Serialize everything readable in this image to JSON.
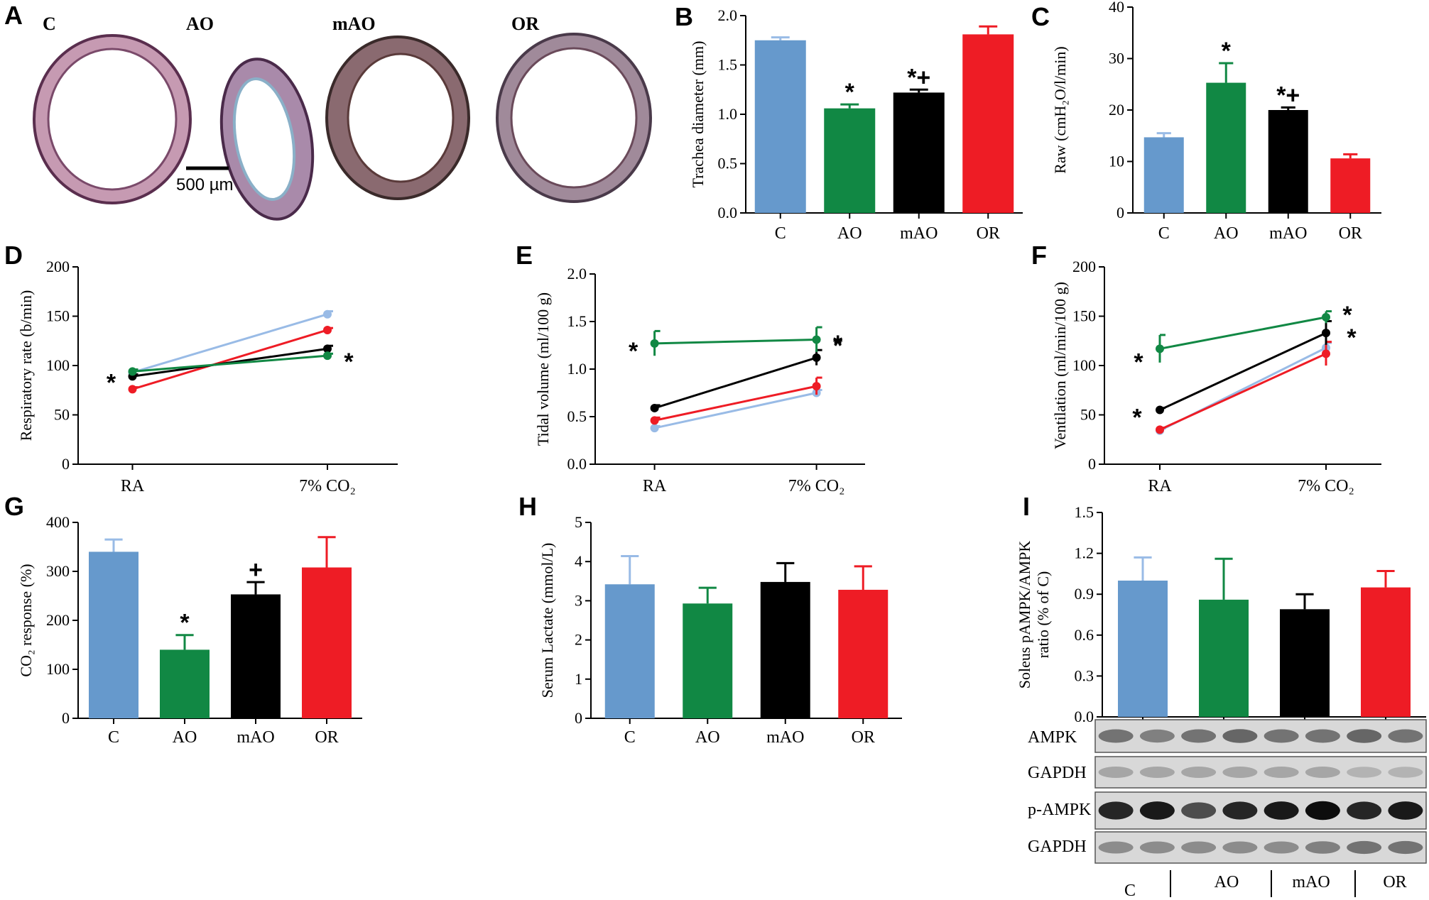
{
  "colors": {
    "C": "#6699cc",
    "AO": "#118844",
    "mAO": "#000000",
    "OR": "#ee1c25",
    "C_light": "#99bbe6"
  },
  "histology": {
    "letter": "A",
    "labels": [
      "C",
      "AO",
      "mAO",
      "OR"
    ],
    "scale_bar": "500 µm"
  },
  "chart_data": [
    {
      "id": "B",
      "type": "bar",
      "ylabel": "Trachea diameter (mm)",
      "categories": [
        "C",
        "AO",
        "mAO",
        "OR"
      ],
      "values": [
        1.75,
        1.06,
        1.22,
        1.81
      ],
      "errors": [
        0.03,
        0.04,
        0.03,
        0.08
      ],
      "ylim": [
        0,
        2.0
      ],
      "ticks": [
        "0.0",
        "0.5",
        "1.0",
        "1.5",
        "2.0"
      ],
      "tick_values": [
        0,
        0.5,
        1.0,
        1.5,
        2.0
      ],
      "markers": [
        "",
        "*",
        "*+",
        ""
      ]
    },
    {
      "id": "C",
      "type": "bar",
      "ylabel": "Raw (cmH₂O/l/min)",
      "categories": [
        "C",
        "AO",
        "mAO",
        "OR"
      ],
      "values": [
        14.7,
        25.3,
        20.0,
        10.6
      ],
      "errors": [
        0.8,
        3.8,
        0.5,
        0.8
      ],
      "ylim": [
        0,
        40
      ],
      "ticks": [
        "0",
        "10",
        "20",
        "30",
        "40"
      ],
      "tick_values": [
        0,
        10,
        20,
        30,
        40
      ],
      "markers": [
        "",
        "*",
        "*+",
        ""
      ]
    },
    {
      "id": "D",
      "type": "line",
      "ylabel": "Respiratory rate (b/min)",
      "x": [
        "RA",
        "7% CO₂"
      ],
      "ylim": [
        0,
        200
      ],
      "ticks": [
        "0",
        "50",
        "100",
        "150",
        "200"
      ],
      "tick_values": [
        0,
        50,
        100,
        150,
        200
      ],
      "series": [
        {
          "name": "C",
          "values": [
            93,
            152
          ],
          "errors": [
            2,
            3
          ]
        },
        {
          "name": "AO",
          "values": [
            94,
            110
          ],
          "errors": [
            2,
            2
          ]
        },
        {
          "name": "mAO",
          "values": [
            89,
            117
          ],
          "errors": [
            2,
            3
          ]
        },
        {
          "name": "OR",
          "values": [
            76,
            136
          ],
          "errors": [
            2,
            2
          ]
        }
      ],
      "annotations": [
        "*",
        "*"
      ]
    },
    {
      "id": "E",
      "type": "line",
      "ylabel": "Tidal volume (ml/100 g)",
      "x": [
        "RA",
        "7% CO₂"
      ],
      "ylim": [
        0,
        2.0
      ],
      "ticks": [
        "0.0",
        "0.5",
        "1.0",
        "1.5",
        "2.0"
      ],
      "tick_values": [
        0,
        0.5,
        1.0,
        1.5,
        2.0
      ],
      "series": [
        {
          "name": "C",
          "values": [
            0.38,
            0.75
          ],
          "errors": [
            0.02,
            0.03
          ]
        },
        {
          "name": "AO",
          "values": [
            1.27,
            1.31
          ],
          "errors": [
            0.13,
            0.13
          ]
        },
        {
          "name": "mAO",
          "values": [
            0.59,
            1.12
          ],
          "errors": [
            0.03,
            0.08
          ]
        },
        {
          "name": "OR",
          "values": [
            0.46,
            0.82
          ],
          "errors": [
            0.03,
            0.09
          ]
        }
      ],
      "annotations": [
        "*",
        "*",
        "*"
      ]
    },
    {
      "id": "F",
      "type": "line",
      "ylabel": "Ventilation (ml/min/100 g)",
      "x": [
        "RA",
        "7% CO₂"
      ],
      "ylim": [
        0,
        200
      ],
      "ticks": [
        "0",
        "50",
        "100",
        "150",
        "200"
      ],
      "tick_values": [
        0,
        50,
        100,
        150,
        200
      ],
      "series": [
        {
          "name": "C",
          "values": [
            34,
            118
          ],
          "errors": [
            2,
            5
          ]
        },
        {
          "name": "AO",
          "values": [
            117,
            149
          ],
          "errors": [
            14,
            6
          ]
        },
        {
          "name": "mAO",
          "values": [
            55,
            133
          ],
          "errors": [
            2,
            12
          ]
        },
        {
          "name": "OR",
          "values": [
            35,
            112
          ],
          "errors": [
            2,
            12
          ]
        }
      ],
      "annotations": [
        "*",
        "*",
        "*",
        "*"
      ]
    },
    {
      "id": "G",
      "type": "bar",
      "ylabel": "CO₂ response (%)",
      "categories": [
        "C",
        "AO",
        "mAO",
        "OR"
      ],
      "values": [
        340,
        140,
        253,
        308
      ],
      "errors": [
        25,
        30,
        25,
        62
      ],
      "ylim": [
        0,
        400
      ],
      "ticks": [
        "0",
        "100",
        "200",
        "300",
        "400"
      ],
      "tick_values": [
        0,
        100,
        200,
        300,
        400
      ],
      "markers": [
        "",
        "*",
        "+",
        ""
      ]
    },
    {
      "id": "H",
      "type": "bar",
      "ylabel": "Serum Lactate  (mmol/L)",
      "categories": [
        "C",
        "AO",
        "mAO",
        "OR"
      ],
      "values": [
        3.42,
        2.93,
        3.48,
        3.28
      ],
      "errors": [
        0.72,
        0.4,
        0.48,
        0.6
      ],
      "ylim": [
        0,
        5
      ],
      "ticks": [
        "0",
        "1",
        "2",
        "3",
        "4",
        "5"
      ],
      "tick_values": [
        0,
        1,
        2,
        3,
        4,
        5
      ],
      "markers": [
        "",
        "",
        "",
        ""
      ]
    },
    {
      "id": "I",
      "type": "bar",
      "ylabel": "Soleus pAMPK/AMPK ratio (% of C)",
      "ylabel_lines": [
        "Soleus pAMPK/AMPK",
        "ratio (% of C)"
      ],
      "categories": [
        "C",
        "AO",
        "mAO",
        "OR"
      ],
      "values": [
        1.0,
        0.86,
        0.79,
        0.95
      ],
      "errors": [
        0.17,
        0.3,
        0.11,
        0.12
      ],
      "ylim": [
        0,
        1.5
      ],
      "ticks": [
        "0.0",
        "0.3",
        "0.6",
        "0.9",
        "1.2",
        "1.5"
      ],
      "tick_values": [
        0,
        0.3,
        0.6,
        0.9,
        1.2,
        1.5
      ],
      "markers": [
        "",
        "",
        "",
        ""
      ]
    }
  ],
  "blot": {
    "rows": [
      "AMPK",
      "GAPDH",
      "p-AMPK",
      "GAPDH"
    ],
    "groups": [
      "C",
      "AO",
      "mAO",
      "OR"
    ]
  }
}
